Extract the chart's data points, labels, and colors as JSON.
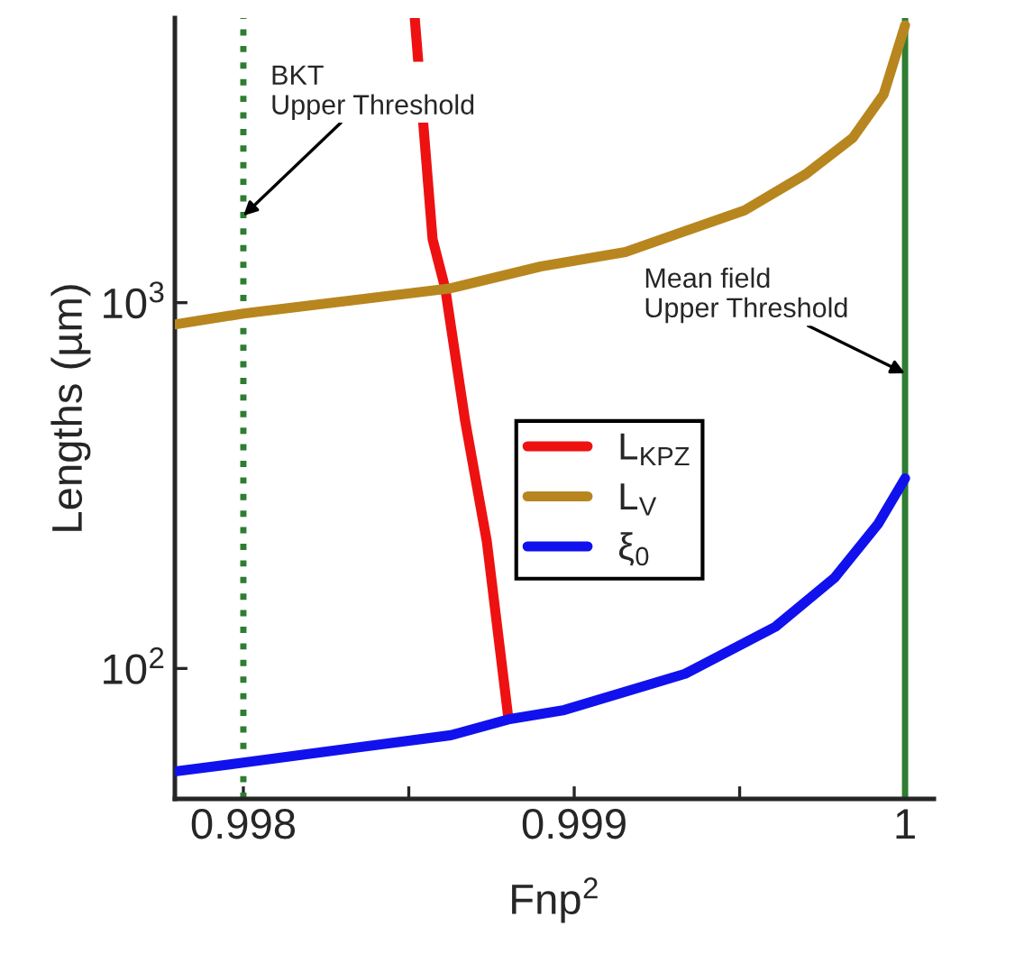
{
  "chart_data": {
    "type": "line",
    "xlabel": "Fnp$^{2}$",
    "ylabel": "Lengths (µm)",
    "log": "y",
    "xlim": [
      0.997793,
      1.000087
    ],
    "ylim": [
      44,
      6000
    ],
    "xticks": [
      0.998,
      {
        "value": 0.9985,
        "label": null
      },
      0.999,
      {
        "value": 0.9995,
        "label": null
      },
      1
    ],
    "yticks": [
      {
        "value": 100,
        "label": "10$^{2}$"
      },
      {
        "value": 1000,
        "label": "10$^{3}$"
      }
    ],
    "grid": false,
    "legend": "right",
    "marker": "none",
    "line_style": "solid",
    "series": [
      {
        "name": "L$_{KPZ}$",
        "color": "#ee1111",
        "x": [
          0.998518,
          0.998572,
          0.99861,
          0.99867,
          0.998736,
          0.998801
        ],
        "values": [
          6000,
          1490,
          1095,
          477,
          222,
          73
        ]
      },
      {
        "name": "L$_{V}$",
        "color": "#b8861e",
        "x": [
          0.997793,
          0.998,
          0.998627,
          0.998899,
          0.999155,
          0.999515,
          0.9997,
          0.999842,
          0.999935,
          1.0
        ],
        "values": [
          872,
          934,
          1095,
          1256,
          1376,
          1789,
          2246,
          2822,
          3708,
          5730
        ]
      },
      {
        "name": "ξ$_{0}$",
        "color": "#1111ee",
        "x": [
          0.997793,
          0.998,
          0.998354,
          0.998627,
          0.998801,
          0.99897,
          0.999335,
          0.999608,
          0.999787,
          0.999918,
          1.0
        ],
        "values": [
          52.3,
          55.3,
          61,
          65.7,
          72.6,
          77,
          96.7,
          130,
          177,
          248,
          331
        ]
      }
    ],
    "ref_lines": [
      {
        "axis": "x",
        "value": 0.998,
        "color": "#2e7d32",
        "line_style": "dotted"
      },
      {
        "axis": "x",
        "value": 1,
        "color": "#2e7d32",
        "line_style": "solid"
      }
    ],
    "annotations": [
      {
        "text": "BKT\nUpper Threshold",
        "x": 0.998,
        "y": 1728
      },
      {
        "text": "Mean field\nUpper Threshold",
        "x": 1,
        "y": 641
      }
    ]
  }
}
